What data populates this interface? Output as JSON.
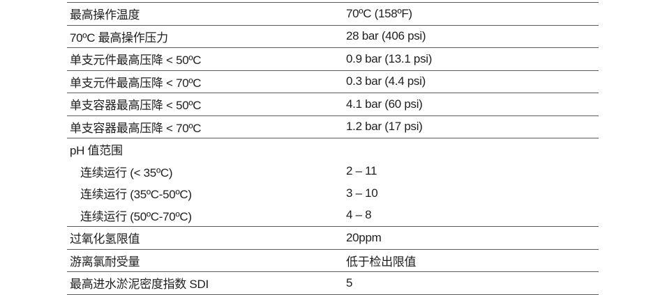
{
  "rows": [
    {
      "label": "最高操作温度",
      "value": "70ºC (158ºF)"
    },
    {
      "label": "70ºC 最高操作压力",
      "value": "28 bar (406 psi)"
    },
    {
      "label": "单支元件最高压降 < 50ºC",
      "value": "0.9 bar (13.1 psi)"
    },
    {
      "label": "单支元件最高压降 < 70ºC",
      "value": "0.3 bar (4.4 psi)"
    },
    {
      "label": "单支容器最高压降 < 50ºC",
      "value": "4.1 bar (60 psi)"
    },
    {
      "label": "单支容器最高压降 < 70ºC",
      "value": "1.2 bar (17 psi)"
    },
    {
      "label": "pH 值范围",
      "value": ""
    },
    {
      "label": "连续运行 (< 35ºC)",
      "value": "2 – 11"
    },
    {
      "label": "连续运行 (35ºC-50ºC)",
      "value": "3 – 10"
    },
    {
      "label": "连续运行 (50ºC-70ºC)",
      "value": "4 – 8"
    },
    {
      "label": "过氧化氢限值",
      "value": "20ppm"
    },
    {
      "label": "游离氯耐受量",
      "value": "低于检出限值"
    },
    {
      "label": "最高进水淤泥密度指数 SDI",
      "value": "5"
    }
  ]
}
